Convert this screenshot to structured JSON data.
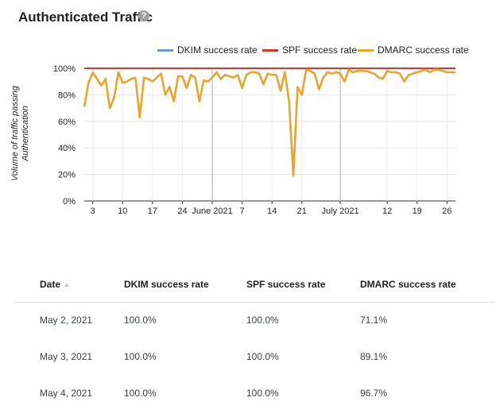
{
  "title": "Authenticated Traffic",
  "help_icon": "?",
  "legend": [
    {
      "label": "DKIM success rate",
      "color": "#6b9bd6"
    },
    {
      "label": "SPF success rate",
      "color": "#d9372b"
    },
    {
      "label": "DMARC success rate",
      "color": "#e6a52d"
    }
  ],
  "chart_data": {
    "type": "line",
    "ylabel": "Volume of traffic passing Authentication",
    "ylim": [
      0,
      100
    ],
    "y_ticks": [
      "0%",
      "20%",
      "40%",
      "60%",
      "80%",
      "100%"
    ],
    "x_tick_labels": [
      {
        "label": "3",
        "day": 2
      },
      {
        "label": "10",
        "day": 9
      },
      {
        "label": "17",
        "day": 16
      },
      {
        "label": "24",
        "day": 23
      },
      {
        "label": "June 2021",
        "day": 30
      },
      {
        "label": "7",
        "day": 37
      },
      {
        "label": "14",
        "day": 44
      },
      {
        "label": "21",
        "day": 51
      },
      {
        "label": "July 2021",
        "day": 60
      },
      {
        "label": "12",
        "day": 71
      },
      {
        "label": "19",
        "day": 78
      },
      {
        "label": "26",
        "day": 85
      }
    ],
    "month_gridlines": [
      30,
      60
    ],
    "grid": true,
    "legend_position": "top",
    "series": [
      {
        "name": "DKIM success rate",
        "values": [
          100,
          100,
          100,
          100,
          100,
          100,
          100,
          100,
          100,
          100,
          100,
          100,
          100,
          100,
          100,
          100,
          100,
          100,
          100,
          100,
          100,
          100,
          100,
          100,
          100,
          100,
          100,
          100,
          100,
          100,
          100,
          100,
          100,
          100,
          100,
          100,
          100,
          100,
          100,
          100,
          100,
          100,
          100,
          100,
          100,
          100,
          100,
          100,
          100,
          100,
          100,
          100,
          100,
          100,
          100,
          100,
          100,
          100,
          100,
          100,
          100,
          100,
          100,
          100,
          100,
          100,
          100,
          100,
          100,
          100,
          100,
          100,
          100,
          100,
          100,
          100,
          100,
          100,
          100,
          100,
          100,
          100,
          100,
          100,
          100,
          100,
          100,
          100
        ]
      },
      {
        "name": "SPF success rate",
        "values": [
          100,
          100,
          100,
          100,
          100,
          100,
          100,
          100,
          100,
          100,
          100,
          100,
          100,
          100,
          100,
          100,
          100,
          100,
          100,
          100,
          100,
          100,
          100,
          100,
          100,
          100,
          100,
          100,
          100,
          100,
          100,
          100,
          100,
          100,
          100,
          100,
          100,
          100,
          100,
          100,
          100,
          100,
          100,
          100,
          100,
          100,
          100,
          100,
          100,
          100,
          100,
          100,
          100,
          100,
          100,
          100,
          100,
          100,
          100,
          100,
          100,
          100,
          100,
          100,
          100,
          100,
          100,
          100,
          100,
          100,
          100,
          100,
          100,
          100,
          100,
          100,
          100,
          100,
          100,
          100,
          100,
          100,
          100,
          100,
          100,
          100,
          100,
          100
        ]
      },
      {
        "name": "DMARC success rate",
        "values": [
          71.1,
          89.1,
          96.7,
          92,
          87,
          92,
          70,
          78,
          97,
          89,
          90,
          92,
          93,
          63,
          93,
          92,
          90,
          93,
          96,
          80,
          86,
          75,
          94,
          94,
          85,
          95,
          93,
          75,
          91,
          90,
          93,
          97,
          92,
          95,
          94,
          93,
          95,
          85,
          95,
          97,
          97,
          96,
          88,
          96,
          95,
          95,
          83,
          97,
          75,
          19,
          86,
          80,
          99,
          98,
          96,
          84,
          93,
          97,
          96,
          97,
          96,
          90,
          99,
          97,
          98,
          98,
          98,
          97,
          96,
          93,
          92,
          98,
          97,
          97,
          96,
          90,
          95,
          96,
          97,
          98,
          99,
          97,
          99,
          99,
          98,
          97,
          97,
          97
        ]
      }
    ]
  },
  "table": {
    "headers": {
      "date": "Date",
      "dkim": "DKIM success rate",
      "spf": "SPF success rate",
      "dmarc": "DMARC success rate"
    },
    "sort_icon": "▲",
    "rows": [
      {
        "date": "May 2, 2021",
        "dkim": "100.0%",
        "spf": "100.0%",
        "dmarc": "71.1%"
      },
      {
        "date": "May 3, 2021",
        "dkim": "100.0%",
        "spf": "100.0%",
        "dmarc": "89.1%"
      },
      {
        "date": "May 4, 2021",
        "dkim": "100.0%",
        "spf": "100.0%",
        "dmarc": "96.7%"
      }
    ]
  }
}
